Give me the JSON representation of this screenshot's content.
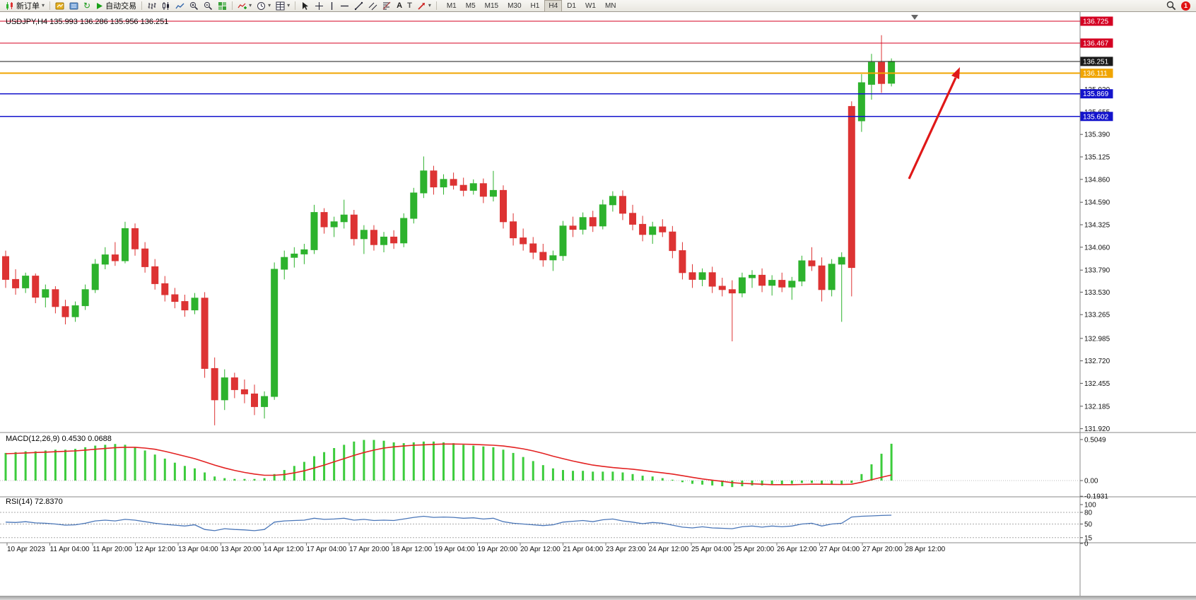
{
  "toolbar": {
    "new_order_label": "新订单",
    "auto_trading_label": "自动交易",
    "timeframes": [
      "M1",
      "M5",
      "M15",
      "M30",
      "H1",
      "H4",
      "D1",
      "W1",
      "MN"
    ],
    "active_timeframe": "H4",
    "notification_count": "1"
  },
  "header": {
    "title_full": "USDJPY,H4 135.993 136.286 135.956 136.251"
  },
  "macd_panel": {
    "label_full": "MACD(12,26,9) 0.4530 0.0688",
    "scale": [
      "0.5049",
      "0.00",
      "-0.1931"
    ]
  },
  "rsi_panel": {
    "label_full": "RSI(14) 72.8370",
    "scale": [
      "100",
      "80",
      "50",
      "15",
      "0"
    ],
    "levels": [
      80,
      50,
      15
    ]
  },
  "colors": {
    "up": "#2db22d",
    "down": "#dd3333",
    "macd": "#3ccc3c",
    "signal": "#e32222",
    "rsi": "#4a76b8",
    "line_red": "#d40022",
    "line_blue": "#1414cc",
    "line_orange": "#f0a500",
    "line_black": "#1a1a1a",
    "arrow": "#e01818"
  },
  "chart_data": {
    "type": "candlestick",
    "symbol": "USDJPY",
    "period": "H4",
    "grid": "off",
    "last_ohlc": {
      "open": "135.993",
      "high": "136.286",
      "low": "135.956",
      "close": "136.251"
    },
    "ylim": [
      131.92,
      136.86
    ],
    "price_ticks": [
      "135.920",
      "135.655",
      "135.390",
      "135.125",
      "134.860",
      "134.590",
      "134.325",
      "134.060",
      "133.790",
      "133.530",
      "133.265",
      "132.985",
      "132.720",
      "132.455",
      "132.185",
      "131.920"
    ],
    "time_labels": [
      "10 Apr 2023",
      "11 Apr 04:00",
      "11 Apr 20:00",
      "12 Apr 12:00",
      "13 Apr 04:00",
      "13 Apr 20:00",
      "14 Apr 12:00",
      "17 Apr 04:00",
      "17 Apr 20:00",
      "18 Apr 12:00",
      "19 Apr 04:00",
      "19 Apr 20:00",
      "20 Apr 12:00",
      "21 Apr 04:00",
      "23 Apr 23:00",
      "24 Apr 12:00",
      "25 Apr 04:00",
      "25 Apr 20:00",
      "26 Apr 12:00",
      "27 Apr 04:00",
      "27 Apr 20:00",
      "28 Apr 12:00"
    ],
    "horizontal_lines": [
      {
        "label": "136.725",
        "price": 136.725,
        "color_key": "line_red",
        "width": 1.3
      },
      {
        "label": "136.467",
        "price": 136.467,
        "color_key": "line_red",
        "width": 1.3
      },
      {
        "label": "136.251",
        "price": 136.251,
        "color_key": "line_black",
        "width": 1
      },
      {
        "label": "136.111",
        "price": 136.111,
        "color_key": "line_orange",
        "width": 2
      },
      {
        "label": "135.869",
        "price": 135.869,
        "color_key": "line_blue",
        "width": 1.8
      },
      {
        "label": "135.602",
        "price": 135.602,
        "color_key": "line_blue",
        "width": 1.8
      }
    ],
    "candles": [
      [
        133.95,
        134.02,
        133.58,
        133.68
      ],
      [
        133.68,
        133.8,
        133.5,
        133.58
      ],
      [
        133.58,
        133.76,
        133.52,
        133.72
      ],
      [
        133.72,
        133.75,
        133.4,
        133.47
      ],
      [
        133.47,
        133.62,
        133.35,
        133.56
      ],
      [
        133.56,
        133.6,
        133.28,
        133.36
      ],
      [
        133.36,
        133.44,
        133.15,
        133.24
      ],
      [
        133.24,
        133.42,
        133.18,
        133.37
      ],
      [
        133.37,
        133.62,
        133.32,
        133.56
      ],
      [
        133.56,
        133.92,
        133.52,
        133.86
      ],
      [
        133.86,
        134.06,
        133.8,
        133.97
      ],
      [
        133.97,
        134.12,
        133.84,
        133.9
      ],
      [
        133.9,
        134.36,
        133.87,
        134.28
      ],
      [
        134.28,
        134.34,
        133.96,
        134.04
      ],
      [
        134.04,
        134.12,
        133.76,
        133.83
      ],
      [
        133.83,
        133.92,
        133.56,
        133.63
      ],
      [
        133.63,
        133.72,
        133.42,
        133.5
      ],
      [
        133.5,
        133.58,
        133.34,
        133.42
      ],
      [
        133.42,
        133.5,
        133.24,
        133.32
      ],
      [
        133.32,
        133.52,
        133.27,
        133.46
      ],
      [
        133.46,
        133.53,
        132.52,
        132.63
      ],
      [
        132.63,
        132.76,
        131.96,
        132.26
      ],
      [
        132.26,
        132.62,
        132.14,
        132.52
      ],
      [
        132.52,
        132.58,
        132.28,
        132.38
      ],
      [
        132.38,
        132.5,
        132.22,
        132.33
      ],
      [
        132.33,
        132.44,
        132.08,
        132.18
      ],
      [
        132.18,
        132.36,
        132.04,
        132.3
      ],
      [
        132.3,
        133.88,
        132.26,
        133.8
      ],
      [
        133.8,
        134.02,
        133.68,
        133.94
      ],
      [
        133.94,
        134.06,
        133.82,
        133.98
      ],
      [
        133.98,
        134.1,
        133.86,
        134.03
      ],
      [
        134.03,
        134.56,
        133.98,
        134.47
      ],
      [
        134.47,
        134.52,
        134.22,
        134.3
      ],
      [
        134.3,
        134.42,
        134.18,
        134.36
      ],
      [
        134.36,
        134.62,
        134.28,
        134.44
      ],
      [
        134.44,
        134.5,
        134.08,
        134.16
      ],
      [
        134.16,
        134.32,
        133.98,
        134.26
      ],
      [
        134.26,
        134.32,
        134.02,
        134.09
      ],
      [
        134.09,
        134.24,
        134.0,
        134.18
      ],
      [
        134.18,
        134.26,
        134.04,
        134.11
      ],
      [
        134.11,
        134.46,
        134.06,
        134.4
      ],
      [
        134.4,
        134.76,
        134.34,
        134.7
      ],
      [
        134.7,
        135.13,
        134.64,
        134.96
      ],
      [
        134.96,
        135.02,
        134.68,
        134.77
      ],
      [
        134.77,
        134.92,
        134.68,
        134.86
      ],
      [
        134.86,
        134.94,
        134.74,
        134.79
      ],
      [
        134.79,
        134.88,
        134.66,
        134.73
      ],
      [
        134.73,
        134.86,
        134.68,
        134.81
      ],
      [
        134.81,
        134.87,
        134.58,
        134.66
      ],
      [
        134.66,
        134.96,
        134.6,
        134.73
      ],
      [
        134.73,
        134.79,
        134.28,
        134.36
      ],
      [
        134.36,
        134.46,
        134.08,
        134.17
      ],
      [
        134.17,
        134.28,
        134.02,
        134.1
      ],
      [
        134.1,
        134.18,
        133.92,
        134.0
      ],
      [
        134.0,
        134.1,
        133.83,
        133.91
      ],
      [
        133.91,
        134.02,
        133.78,
        133.96
      ],
      [
        133.96,
        134.37,
        133.9,
        134.31
      ],
      [
        134.31,
        134.42,
        134.18,
        134.27
      ],
      [
        134.27,
        134.47,
        134.21,
        134.41
      ],
      [
        134.41,
        134.49,
        134.24,
        134.31
      ],
      [
        134.31,
        134.62,
        134.27,
        134.56
      ],
      [
        134.56,
        134.72,
        134.48,
        134.66
      ],
      [
        134.66,
        134.73,
        134.38,
        134.46
      ],
      [
        134.46,
        134.56,
        134.26,
        134.33
      ],
      [
        134.33,
        134.43,
        134.13,
        134.21
      ],
      [
        134.21,
        134.36,
        134.1,
        134.3
      ],
      [
        134.3,
        134.39,
        134.18,
        134.24
      ],
      [
        134.24,
        134.31,
        133.93,
        134.02
      ],
      [
        134.02,
        134.12,
        133.68,
        133.76
      ],
      [
        133.76,
        133.86,
        133.58,
        133.68
      ],
      [
        133.68,
        133.81,
        133.6,
        133.76
      ],
      [
        133.76,
        133.83,
        133.52,
        133.6
      ],
      [
        133.6,
        133.7,
        133.48,
        133.56
      ],
      [
        133.56,
        133.67,
        132.95,
        133.52
      ],
      [
        133.52,
        133.76,
        133.47,
        133.7
      ],
      [
        133.7,
        133.79,
        133.58,
        133.73
      ],
      [
        133.73,
        133.81,
        133.53,
        133.61
      ],
      [
        133.61,
        133.73,
        133.49,
        133.67
      ],
      [
        133.67,
        133.76,
        133.53,
        133.59
      ],
      [
        133.59,
        133.71,
        133.44,
        133.66
      ],
      [
        133.66,
        133.96,
        133.6,
        133.9
      ],
      [
        133.9,
        134.06,
        133.78,
        133.84
      ],
      [
        133.84,
        133.94,
        133.42,
        133.56
      ],
      [
        133.56,
        133.92,
        133.48,
        133.86
      ],
      [
        133.86,
        134.0,
        133.18,
        133.94
      ],
      [
        135.72,
        135.78,
        133.48,
        133.82
      ],
      [
        135.55,
        136.1,
        135.42,
        136.0
      ],
      [
        135.98,
        136.34,
        135.8,
        136.24
      ],
      [
        136.24,
        136.56,
        135.88,
        135.99
      ],
      [
        135.993,
        136.286,
        135.956,
        136.251
      ]
    ],
    "macd": {
      "histogram": [
        0.34,
        0.35,
        0.36,
        0.36,
        0.37,
        0.38,
        0.38,
        0.39,
        0.41,
        0.43,
        0.44,
        0.45,
        0.44,
        0.41,
        0.37,
        0.32,
        0.27,
        0.22,
        0.18,
        0.15,
        0.1,
        0.05,
        0.03,
        0.02,
        0.02,
        0.02,
        0.03,
        0.08,
        0.13,
        0.18,
        0.23,
        0.3,
        0.35,
        0.4,
        0.44,
        0.48,
        0.5,
        0.5,
        0.49,
        0.47,
        0.46,
        0.47,
        0.48,
        0.48,
        0.47,
        0.46,
        0.44,
        0.43,
        0.42,
        0.41,
        0.38,
        0.34,
        0.29,
        0.24,
        0.19,
        0.15,
        0.13,
        0.12,
        0.12,
        0.11,
        0.11,
        0.11,
        0.1,
        0.08,
        0.06,
        0.05,
        0.03,
        0.01,
        -0.02,
        -0.04,
        -0.05,
        -0.06,
        -0.07,
        -0.08,
        -0.07,
        -0.06,
        -0.06,
        -0.05,
        -0.05,
        -0.04,
        -0.03,
        -0.03,
        -0.04,
        -0.05,
        -0.05,
        -0.03,
        0.08,
        0.2,
        0.33,
        0.453
      ],
      "signal": [
        0.33,
        0.335,
        0.34,
        0.345,
        0.35,
        0.355,
        0.36,
        0.365,
        0.375,
        0.385,
        0.395,
        0.405,
        0.41,
        0.41,
        0.4,
        0.385,
        0.36,
        0.33,
        0.3,
        0.27,
        0.23,
        0.19,
        0.155,
        0.125,
        0.1,
        0.08,
        0.065,
        0.065,
        0.075,
        0.095,
        0.12,
        0.155,
        0.19,
        0.23,
        0.27,
        0.31,
        0.345,
        0.375,
        0.4,
        0.415,
        0.425,
        0.435,
        0.44,
        0.445,
        0.45,
        0.45,
        0.448,
        0.445,
        0.44,
        0.435,
        0.425,
        0.41,
        0.39,
        0.365,
        0.335,
        0.3,
        0.27,
        0.24,
        0.215,
        0.19,
        0.175,
        0.16,
        0.15,
        0.14,
        0.125,
        0.11,
        0.095,
        0.08,
        0.06,
        0.04,
        0.02,
        0.005,
        -0.01,
        -0.025,
        -0.035,
        -0.04,
        -0.045,
        -0.05,
        -0.05,
        -0.05,
        -0.048,
        -0.045,
        -0.045,
        -0.046,
        -0.048,
        -0.045,
        -0.02,
        0.01,
        0.04,
        0.0688
      ]
    },
    "rsi": [
      55,
      54,
      56,
      53,
      52,
      50,
      47,
      48,
      52,
      58,
      60,
      58,
      62,
      60,
      56,
      52,
      49,
      47,
      45,
      48,
      36,
      33,
      38,
      36,
      35,
      33,
      36,
      55,
      58,
      59,
      60,
      65,
      62,
      63,
      65,
      60,
      62,
      59,
      60,
      59,
      63,
      67,
      70,
      67,
      68,
      67,
      65,
      66,
      63,
      65,
      56,
      52,
      50,
      48,
      46,
      48,
      55,
      57,
      59,
      56,
      61,
      63,
      58,
      55,
      51,
      54,
      52,
      47,
      42,
      40,
      43,
      40,
      39,
      38,
      43,
      45,
      42,
      45,
      43,
      45,
      50,
      52,
      45,
      50,
      52,
      68,
      70,
      71,
      72,
      72.8
    ]
  }
}
